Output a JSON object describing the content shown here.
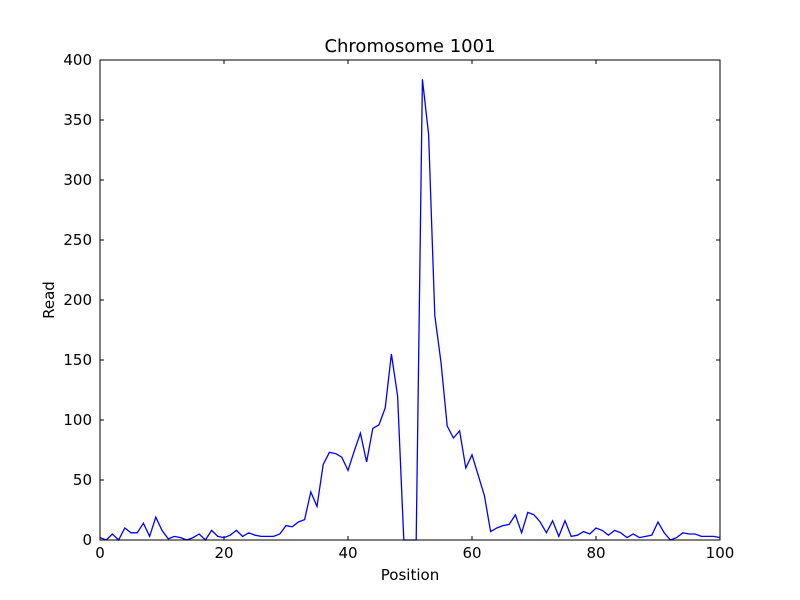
{
  "chart_data": {
    "type": "line",
    "title": "Chromosome 1001",
    "xlabel": "Position",
    "ylabel": "Read",
    "xlim": [
      0,
      100
    ],
    "ylim": [
      0,
      400
    ],
    "x_ticks": [
      0,
      20,
      40,
      60,
      80,
      100
    ],
    "y_ticks": [
      0,
      50,
      100,
      150,
      200,
      250,
      300,
      350,
      400
    ],
    "grid": false,
    "line_color": "#0000ff",
    "series": [
      {
        "x": [
          0,
          1,
          2,
          3,
          4,
          5,
          6,
          7,
          8,
          9,
          10,
          11,
          12,
          13,
          14,
          15,
          16,
          17,
          18,
          19,
          20,
          21,
          22,
          23,
          24,
          25,
          26,
          27,
          28,
          29,
          30,
          31,
          32,
          33,
          34,
          35,
          36,
          37,
          38,
          39,
          40,
          41,
          42,
          43,
          44,
          45,
          46,
          47,
          48,
          49,
          50,
          51,
          52,
          53,
          54,
          55,
          56,
          57,
          58,
          59,
          60,
          61,
          62,
          63,
          64,
          65,
          66,
          67,
          68,
          69,
          70,
          71,
          72,
          73,
          74,
          75,
          76,
          77,
          78,
          79,
          80,
          81,
          82,
          83,
          84,
          85,
          86,
          87,
          88,
          89,
          90,
          91,
          92,
          93,
          94,
          95,
          96,
          97,
          98,
          99,
          100
        ],
        "values": [
          2,
          0,
          5,
          0,
          10,
          6,
          6,
          14,
          3,
          19,
          8,
          1,
          3,
          2,
          0,
          2,
          5,
          0,
          8,
          3,
          2,
          4,
          8,
          3,
          6,
          4,
          3,
          3,
          3,
          5,
          12,
          11,
          15,
          17,
          40,
          28,
          63,
          73,
          72,
          69,
          58,
          74,
          89,
          65,
          93,
          96,
          110,
          155,
          120,
          0,
          0,
          0,
          384,
          338,
          187,
          148,
          95,
          85,
          91,
          60,
          71,
          54,
          37,
          7,
          10,
          12,
          13,
          21,
          6,
          23,
          21,
          15,
          6,
          16,
          3,
          16,
          3,
          4,
          7,
          5,
          10,
          8,
          4,
          8,
          6,
          2,
          5,
          2,
          3,
          4,
          15,
          6,
          0,
          2,
          6,
          5,
          5,
          3,
          3,
          3,
          2
        ]
      }
    ]
  }
}
